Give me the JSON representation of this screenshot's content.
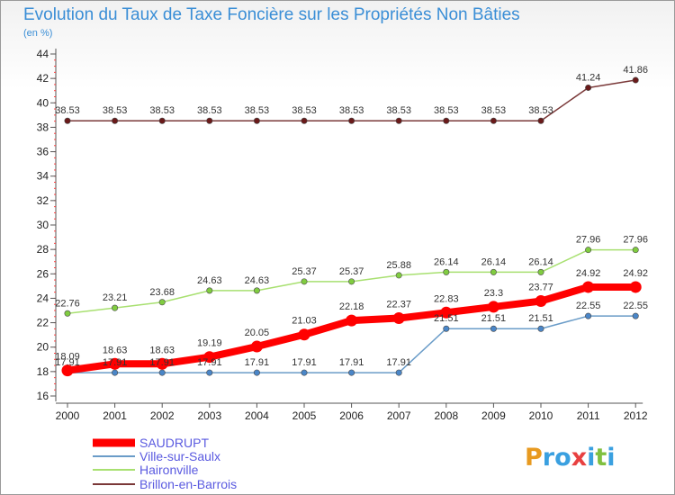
{
  "chart_data": {
    "type": "line",
    "title": "Evolution du Taux de Taxe Foncière sur les Propriétés Non Bâties",
    "subtitle": "(en %)",
    "xlabel": "",
    "ylabel": "",
    "x": [
      "2000",
      "2001",
      "2002",
      "2003",
      "2004",
      "2005",
      "2006",
      "2007",
      "2008",
      "2009",
      "2010",
      "2011",
      "2012"
    ],
    "ylim": [
      16,
      44
    ],
    "yticks": [
      16,
      18,
      20,
      22,
      24,
      26,
      28,
      30,
      32,
      34,
      36,
      38,
      40,
      42,
      44
    ],
    "grid": false,
    "legend_position": "bottom-left",
    "series": [
      {
        "name": "SAUDRUPT",
        "color": "#ff0000",
        "marker_color": "#ff0000",
        "values": [
          18.09,
          18.63,
          18.63,
          19.19,
          20.05,
          21.03,
          22.18,
          22.37,
          22.83,
          23.3,
          23.77,
          24.92,
          24.92
        ],
        "labels": [
          "18.09",
          "18.63",
          "18.63",
          "19.19",
          "20.05",
          "21.03",
          "22.18",
          "22.37",
          "22.83",
          "23.3",
          "23.77",
          "24.92",
          "24.92"
        ]
      },
      {
        "name": "Ville-sur-Saulx",
        "color": "#6a9cc8",
        "marker_color": "#4a86c8",
        "values": [
          17.91,
          17.91,
          17.91,
          17.91,
          17.91,
          17.91,
          17.91,
          17.91,
          21.51,
          21.51,
          21.51,
          22.55,
          22.55
        ],
        "labels": [
          "17.91",
          "17.91",
          "17.91",
          "17.91",
          "17.91",
          "17.91",
          "17.91",
          "17.91",
          "21.51",
          "21.51",
          "21.51",
          "22.55",
          "22.55"
        ]
      },
      {
        "name": "Haironville",
        "color": "#a8e070",
        "marker_color": "#80cc40",
        "values": [
          22.76,
          23.21,
          23.68,
          24.63,
          24.63,
          25.37,
          25.37,
          25.88,
          26.14,
          26.14,
          26.14,
          27.96,
          27.96
        ],
        "labels": [
          "22.76",
          "23.21",
          "23.68",
          "24.63",
          "24.63",
          "25.37",
          "25.37",
          "25.88",
          "26.14",
          "26.14",
          "26.14",
          "27.96",
          "27.96"
        ]
      },
      {
        "name": "Brillon-en-Barrois",
        "color": "#7a3838",
        "marker_color": "#6a1a1a",
        "values": [
          38.53,
          38.53,
          38.53,
          38.53,
          38.53,
          38.53,
          38.53,
          38.53,
          38.53,
          38.53,
          38.53,
          41.24,
          41.86
        ],
        "labels": [
          "38.53",
          "38.53",
          "38.53",
          "38.53",
          "38.53",
          "38.53",
          "38.53",
          "38.53",
          "38.53",
          "38.53",
          "38.53",
          "41.24",
          "41.86"
        ]
      }
    ]
  },
  "logo": {
    "text": "Proxiti",
    "letters": [
      {
        "ch": "P",
        "color": "#e89a20"
      },
      {
        "ch": "r",
        "color": "#3aa0e0"
      },
      {
        "ch": "o",
        "color": "#3aa0e0"
      },
      {
        "ch": "x",
        "color": "#e84040"
      },
      {
        "ch": "i",
        "color": "#3aa0e0"
      },
      {
        "ch": "t",
        "color": "#80c040"
      },
      {
        "ch": "i",
        "color": "#3aa0e0"
      }
    ]
  }
}
